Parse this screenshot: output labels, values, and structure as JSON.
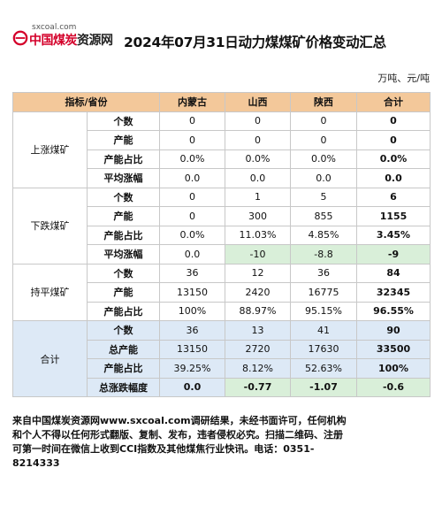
{
  "header": {
    "logo_url": "sxcoal.com",
    "logo_red": "中国煤炭",
    "logo_black": "资源网",
    "title": "2024年07月31日动力煤煤矿价格变动汇总"
  },
  "unit": "万吨、元/吨",
  "table": {
    "headers": [
      "指标/省份",
      "内蒙古",
      "山西",
      "陕西",
      "合计"
    ],
    "groups": [
      {
        "name": "上涨煤矿",
        "rows": [
          {
            "metric": "个数",
            "values": [
              "0",
              "0",
              "0",
              "0"
            ]
          },
          {
            "metric": "产能",
            "values": [
              "0",
              "0",
              "0",
              "0"
            ]
          },
          {
            "metric": "产能占比",
            "values": [
              "0.0%",
              "0.0%",
              "0.0%",
              "0.0%"
            ]
          },
          {
            "metric": "平均涨幅",
            "values": [
              "0.0",
              "0.0",
              "0.0",
              "0.0"
            ]
          }
        ]
      },
      {
        "name": "下跌煤矿",
        "rows": [
          {
            "metric": "个数",
            "values": [
              "0",
              "1",
              "5",
              "6"
            ]
          },
          {
            "metric": "产能",
            "values": [
              "0",
              "300",
              "855",
              "1155"
            ]
          },
          {
            "metric": "产能占比",
            "values": [
              "0.0%",
              "11.03%",
              "4.85%",
              "3.45%"
            ]
          },
          {
            "metric": "平均涨幅",
            "values": [
              "0.0",
              "-10",
              "-8.8",
              "-9"
            ]
          }
        ]
      },
      {
        "name": "持平煤矿",
        "rows": [
          {
            "metric": "个数",
            "values": [
              "36",
              "12",
              "36",
              "84"
            ]
          },
          {
            "metric": "产能",
            "values": [
              "13150",
              "2420",
              "16775",
              "32345"
            ]
          },
          {
            "metric": "产能占比",
            "values": [
              "100%",
              "88.97%",
              "95.15%",
              "96.55%"
            ]
          }
        ]
      },
      {
        "name": "合计",
        "rows": [
          {
            "metric": "个数",
            "values": [
              "36",
              "13",
              "41",
              "90"
            ]
          },
          {
            "metric": "总产能",
            "values": [
              "13150",
              "2720",
              "17630",
              "33500"
            ]
          },
          {
            "metric": "产能占比",
            "values": [
              "39.25%",
              "8.12%",
              "52.63%",
              "100%"
            ]
          },
          {
            "metric": "总涨跌幅度",
            "values": [
              "0.0",
              "-0.77",
              "-1.07",
              "-0.6"
            ]
          }
        ]
      }
    ]
  },
  "footer": "来自中国煤炭资源网www.sxcoal.com调研结果，未经书面许可，任何机构和个人不得以任何形式翻版、复制、发布，违者侵权必究。扫描二维码、注册可第一时间在微信上收到CCI指数及其他煤焦行业快讯。电话：0351-8214333",
  "colors": {
    "header_bg": "#f3c89a",
    "green_cell": "#d9efd9",
    "blue_group": "#dde9f6",
    "logo_red": "#d4002a"
  }
}
